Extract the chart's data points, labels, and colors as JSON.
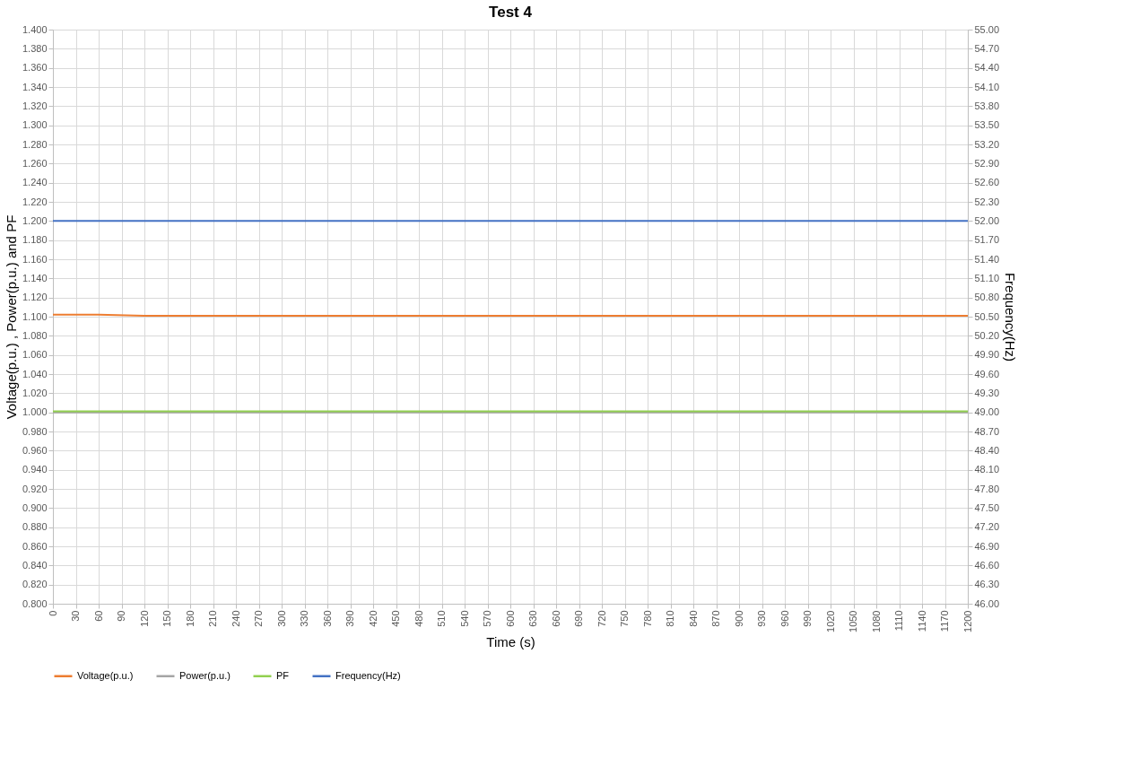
{
  "chart_data": {
    "type": "line",
    "title": "Test 4",
    "xlabel": "Time (s)",
    "ylabel": "Voltage(p.u.) , Power(p.u.) and PF",
    "y2label": "Frequency(Hz)",
    "x": [
      0,
      60,
      120,
      180,
      240,
      300,
      360,
      420,
      480,
      540,
      600,
      660,
      720,
      780,
      840,
      900,
      960,
      1020,
      1080,
      1140,
      1200
    ],
    "series": [
      {
        "name": "Voltage(p.u.)",
        "color": "#ed7d31",
        "values": [
          1.102,
          1.102,
          1.101,
          1.101,
          1.101,
          1.101,
          1.101,
          1.101,
          1.101,
          1.101,
          1.101,
          1.101,
          1.101,
          1.101,
          1.101,
          1.101,
          1.101,
          1.101,
          1.101,
          1.101,
          1.101
        ]
      },
      {
        "name": "Power(p.u.)",
        "color": "#a5a5a5",
        "values": [
          1.0,
          1.0,
          1.0,
          1.0,
          1.0,
          1.0,
          1.0,
          1.0,
          1.0,
          1.0,
          1.0,
          1.0,
          1.0,
          1.0,
          1.0,
          1.0,
          1.0,
          1.0,
          1.0,
          1.0,
          1.0
        ]
      },
      {
        "name": "PF",
        "color": "#92d050",
        "values": [
          1.001,
          1.001,
          1.001,
          1.001,
          1.001,
          1.001,
          1.001,
          1.001,
          1.001,
          1.001,
          1.001,
          1.001,
          1.001,
          1.001,
          1.001,
          1.001,
          1.001,
          1.001,
          1.001,
          1.001,
          1.001
        ]
      },
      {
        "name": "Frequency(Hz)",
        "color": "#4472c4",
        "axis": "y2",
        "values": [
          52.0,
          52.0,
          52.0,
          52.0,
          52.0,
          52.0,
          52.0,
          52.0,
          52.0,
          52.0,
          52.0,
          52.0,
          52.0,
          52.0,
          52.0,
          52.0,
          52.0,
          52.0,
          52.0,
          52.0,
          52.0
        ]
      }
    ],
    "xlim": [
      0,
      1200
    ],
    "xticks": [
      0,
      30,
      60,
      90,
      120,
      150,
      180,
      210,
      240,
      270,
      300,
      330,
      360,
      390,
      420,
      450,
      480,
      510,
      540,
      570,
      600,
      630,
      660,
      690,
      720,
      750,
      780,
      810,
      840,
      870,
      900,
      930,
      960,
      990,
      1020,
      1050,
      1080,
      1110,
      1140,
      1170,
      1200
    ],
    "ylim": [
      0.8,
      1.4
    ],
    "yticks": [
      {
        "value": 0.8,
        "label": "0.800"
      },
      {
        "value": 0.82,
        "label": "0.820"
      },
      {
        "value": 0.84,
        "label": "0.840"
      },
      {
        "value": 0.86,
        "label": "0.860"
      },
      {
        "value": 0.88,
        "label": "0.880"
      },
      {
        "value": 0.9,
        "label": "0.900"
      },
      {
        "value": 0.92,
        "label": "0.920"
      },
      {
        "value": 0.94,
        "label": "0.940"
      },
      {
        "value": 0.96,
        "label": "0.960"
      },
      {
        "value": 0.98,
        "label": "0.980"
      },
      {
        "value": 1.0,
        "label": "1.000"
      },
      {
        "value": 1.02,
        "label": "1.020"
      },
      {
        "value": 1.04,
        "label": "1.040"
      },
      {
        "value": 1.06,
        "label": "1.060"
      },
      {
        "value": 1.08,
        "label": "1.080"
      },
      {
        "value": 1.1,
        "label": "1.100"
      },
      {
        "value": 1.12,
        "label": "1.120"
      },
      {
        "value": 1.14,
        "label": "1.140"
      },
      {
        "value": 1.16,
        "label": "1.160"
      },
      {
        "value": 1.18,
        "label": "1.180"
      },
      {
        "value": 1.2,
        "label": "1.200"
      },
      {
        "value": 1.22,
        "label": "1.220"
      },
      {
        "value": 1.24,
        "label": "1.240"
      },
      {
        "value": 1.26,
        "label": "1.260"
      },
      {
        "value": 1.28,
        "label": "1.280"
      },
      {
        "value": 1.3,
        "label": "1.300"
      },
      {
        "value": 1.32,
        "label": "1.320"
      },
      {
        "value": 1.34,
        "label": "1.340"
      },
      {
        "value": 1.36,
        "label": "1.360"
      },
      {
        "value": 1.38,
        "label": "1.380"
      },
      {
        "value": 1.4,
        "label": "1.400"
      }
    ],
    "y2lim": [
      46.0,
      55.0
    ],
    "y2ticks": [
      {
        "value": 46.0,
        "label": "46.00"
      },
      {
        "value": 46.3,
        "label": "46.30"
      },
      {
        "value": 46.6,
        "label": "46.60"
      },
      {
        "value": 46.9,
        "label": "46.90"
      },
      {
        "value": 47.2,
        "label": "47.20"
      },
      {
        "value": 47.5,
        "label": "47.50"
      },
      {
        "value": 47.8,
        "label": "47.80"
      },
      {
        "value": 48.1,
        "label": "48.10"
      },
      {
        "value": 48.4,
        "label": "48.40"
      },
      {
        "value": 48.7,
        "label": "48.70"
      },
      {
        "value": 49.0,
        "label": "49.00"
      },
      {
        "value": 49.3,
        "label": "49.30"
      },
      {
        "value": 49.6,
        "label": "49.60"
      },
      {
        "value": 49.9,
        "label": "49.90"
      },
      {
        "value": 50.2,
        "label": "50.20"
      },
      {
        "value": 50.5,
        "label": "50.50"
      },
      {
        "value": 50.8,
        "label": "50.80"
      },
      {
        "value": 51.1,
        "label": "51.10"
      },
      {
        "value": 51.4,
        "label": "51.40"
      },
      {
        "value": 51.7,
        "label": "51.70"
      },
      {
        "value": 52.0,
        "label": "52.00"
      },
      {
        "value": 52.3,
        "label": "52.30"
      },
      {
        "value": 52.6,
        "label": "52.60"
      },
      {
        "value": 52.9,
        "label": "52.90"
      },
      {
        "value": 53.2,
        "label": "53.20"
      },
      {
        "value": 53.5,
        "label": "53.50"
      },
      {
        "value": 53.8,
        "label": "53.80"
      },
      {
        "value": 54.1,
        "label": "54.10"
      },
      {
        "value": 54.4,
        "label": "54.40"
      },
      {
        "value": 54.7,
        "label": "54.70"
      },
      {
        "value": 55.0,
        "label": "55.00"
      }
    ],
    "grid": true,
    "legend": "bottom",
    "marker": "none",
    "line_style": "solid"
  }
}
